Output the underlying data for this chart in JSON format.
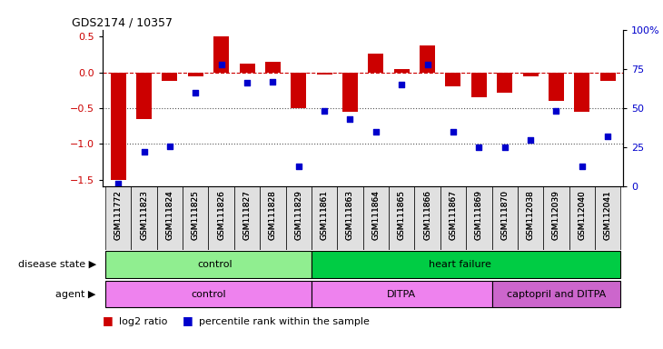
{
  "title": "GDS2174 / 10357",
  "samples": [
    "GSM111772",
    "GSM111823",
    "GSM111824",
    "GSM111825",
    "GSM111826",
    "GSM111827",
    "GSM111828",
    "GSM111829",
    "GSM111861",
    "GSM111863",
    "GSM111864",
    "GSM111865",
    "GSM111866",
    "GSM111867",
    "GSM111869",
    "GSM111870",
    "GSM112038",
    "GSM112039",
    "GSM112040",
    "GSM112041"
  ],
  "log2_ratio": [
    -1.5,
    -0.65,
    -0.12,
    -0.05,
    0.5,
    0.12,
    0.15,
    -0.5,
    -0.03,
    -0.55,
    0.27,
    0.05,
    0.38,
    -0.2,
    -0.35,
    -0.28,
    -0.06,
    -0.4,
    -0.55,
    -0.12
  ],
  "percentile": [
    2,
    22,
    26,
    60,
    78,
    66,
    67,
    13,
    48,
    43,
    35,
    65,
    78,
    35,
    25,
    25,
    30,
    48,
    13,
    32
  ],
  "disease_state_groups": [
    {
      "label": "control",
      "start": 0,
      "end": 8,
      "color": "#90EE90"
    },
    {
      "label": "heart failure",
      "start": 8,
      "end": 20,
      "color": "#00CC44"
    }
  ],
  "agent_groups": [
    {
      "label": "control",
      "start": 0,
      "end": 8,
      "color": "#EE82EE"
    },
    {
      "label": "DITPA",
      "start": 8,
      "end": 15,
      "color": "#EE82EE"
    },
    {
      "label": "captopril and DITPA",
      "start": 15,
      "end": 20,
      "color": "#CC66CC"
    }
  ],
  "bar_color": "#CC0000",
  "dot_color": "#0000CC",
  "ref_line_color": "#CC0000",
  "dotted_line_color": "#555555",
  "ylim_left": [
    -1.6,
    0.6
  ],
  "ylim_right": [
    0,
    100
  ],
  "yticks_left": [
    -1.5,
    -1.0,
    -0.5,
    0.0,
    0.5
  ],
  "yticks_right": [
    0,
    25,
    50,
    75,
    100
  ],
  "background_color": "#ffffff",
  "n_samples": 20,
  "ctrl_boundary": 8,
  "ditpa_boundary": 15
}
